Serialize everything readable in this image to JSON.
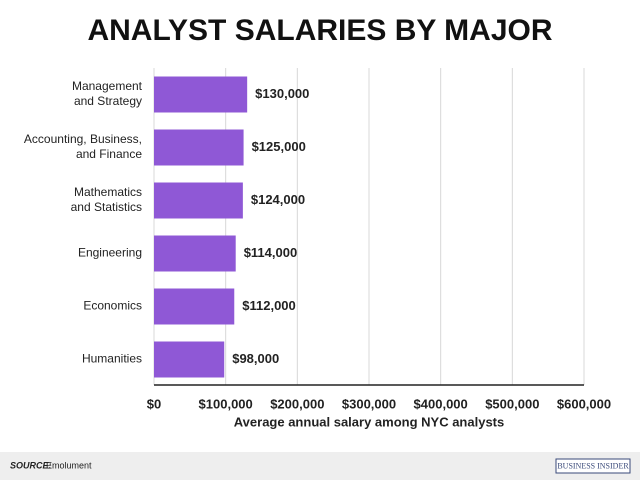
{
  "chart_data": {
    "type": "bar",
    "orientation": "horizontal",
    "title": "ANALYST SALARIES BY MAJOR",
    "categories": [
      [
        "Management",
        "and Strategy"
      ],
      [
        "Accounting, Business,",
        "and Finance"
      ],
      [
        "Mathematics",
        "and Statistics"
      ],
      [
        "Engineering"
      ],
      [
        "Economics"
      ],
      [
        "Humanities"
      ]
    ],
    "values": [
      130000,
      125000,
      124000,
      114000,
      112000,
      98000
    ],
    "value_labels": [
      "$130,000",
      "$125,000",
      "$124,000",
      "$114,000",
      "$112,000",
      "$98,000"
    ],
    "color": "#8f58d6",
    "xlim": [
      0,
      600000
    ],
    "xticks": [
      {
        "value": 0,
        "label": "$0"
      },
      {
        "value": 100000,
        "label": "$100,000"
      },
      {
        "value": 200000,
        "label": "$200,000"
      },
      {
        "value": 300000,
        "label": "$300,000"
      },
      {
        "value": 400000,
        "label": "$400,000"
      },
      {
        "value": 500000,
        "label": "$500,000"
      },
      {
        "value": 600000,
        "label": "$600,000"
      }
    ],
    "xlabel": "Average annual salary among NYC analysts",
    "grid": true,
    "source_label": "SOURCE:",
    "source": "Emolument",
    "logo": "BUSINESS INSIDER"
  }
}
